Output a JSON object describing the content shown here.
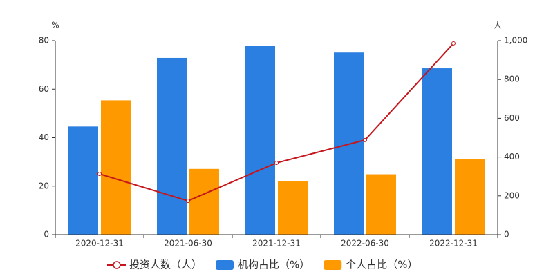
{
  "chart_data": {
    "type": "bar-line",
    "y_label": "%",
    "y2_label": "人",
    "categories": [
      "2020-12-31",
      "2021-06-30",
      "2021-12-31",
      "2022-06-30",
      "2022-12-31"
    ],
    "series": [
      {
        "name": "机构占比（%）",
        "type": "bar",
        "color": "#2b7fe0",
        "values": [
          44.6,
          72.9,
          78.0,
          75.1,
          68.6
        ]
      },
      {
        "name": "个人占比（%）",
        "type": "bar",
        "color": "#ff9900",
        "values": [
          55.4,
          27.1,
          22.0,
          24.9,
          31.2
        ]
      },
      {
        "name": "投资人数（人）",
        "type": "line",
        "axis": "y2",
        "color": "#c4161c",
        "values": [
          313,
          174,
          370,
          488,
          986
        ]
      }
    ],
    "ylim": [
      0,
      80
    ],
    "yticks": [
      0,
      20,
      40,
      60,
      80
    ],
    "y2lim": [
      0,
      1000
    ],
    "y2ticks": [
      0,
      200,
      400,
      600,
      800,
      {
        "value": 1000,
        "label": "1,000"
      }
    ],
    "grid": false
  }
}
